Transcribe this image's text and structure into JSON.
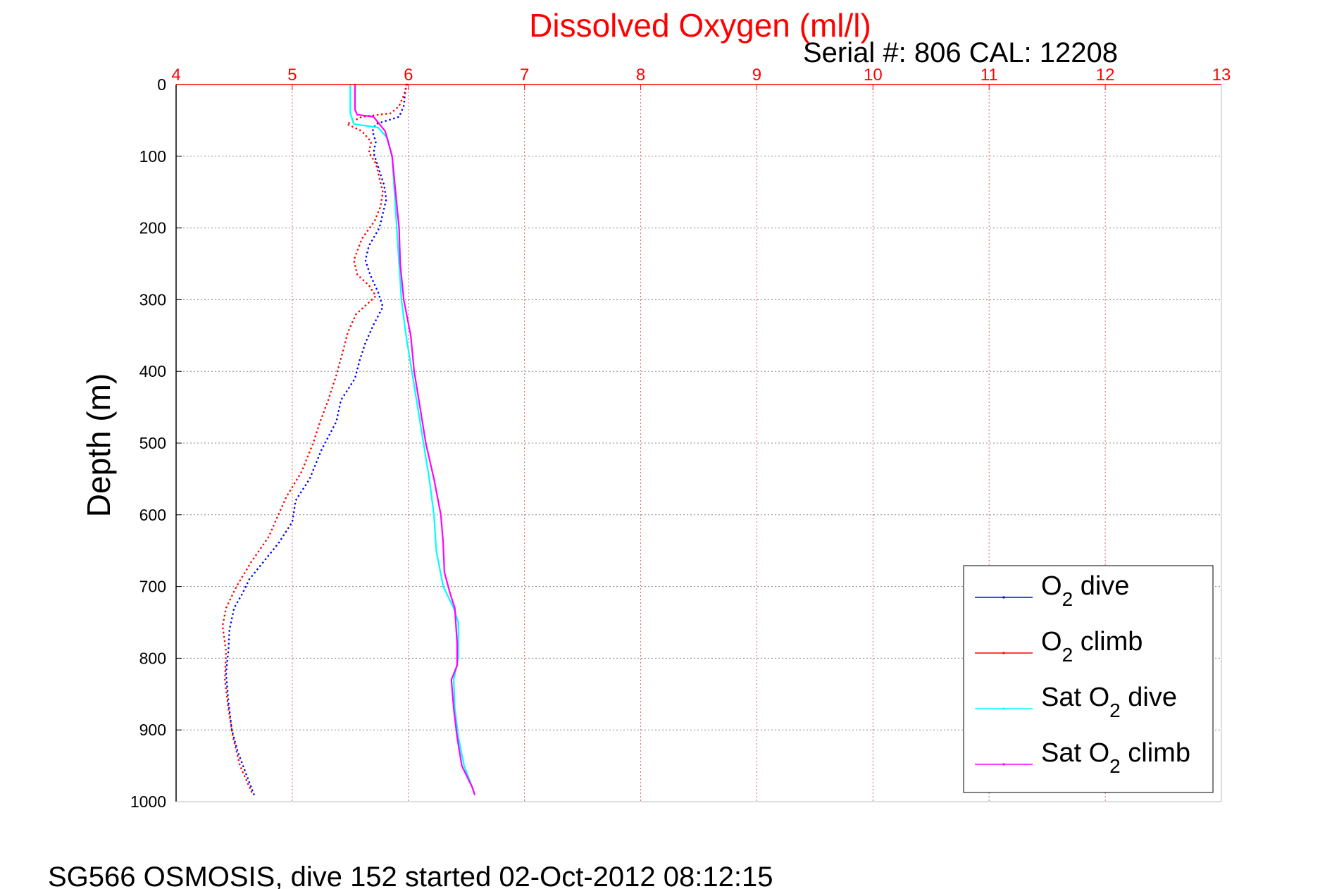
{
  "title": "Dissolved Oxygen (ml/l)",
  "subtitle": "Serial #: 806  CAL: 12208",
  "footer": "SG566 OSMOSIS, dive 152 started 02-Oct-2012 08:12:15",
  "colors": {
    "title": "#ff0000",
    "top_axis": "#ff0000",
    "axes": "#000000",
    "o2_dive": "#0000ff",
    "o2_climb": "#ff0000",
    "sat_dive": "#00ffff",
    "sat_climb": "#ff00ff"
  },
  "chart_data": {
    "type": "line",
    "title": "Dissolved Oxygen (ml/l)",
    "subtitle": "Serial #: 806  CAL: 12208",
    "xlabel": "",
    "ylabel": "Depth (m)",
    "x_axis_position": "top",
    "y_reversed": true,
    "xlim": [
      4,
      13
    ],
    "ylim": [
      0,
      1000
    ],
    "xticks": [
      "4",
      "5",
      "6",
      "7",
      "8",
      "9",
      "10",
      "11",
      "12",
      "13"
    ],
    "yticks": [
      "0",
      "100",
      "200",
      "300",
      "400",
      "500",
      "600",
      "700",
      "800",
      "900",
      "1000"
    ],
    "grid": true,
    "legend_position": "bottom-right",
    "series": [
      {
        "name": "O2 dive",
        "legend_label": {
          "prefix": "O",
          "sub": "2",
          "suffix": " dive"
        },
        "color": "#0000ff",
        "style": "dotted",
        "points": [
          [
            5.98,
            0
          ],
          [
            5.97,
            15
          ],
          [
            5.96,
            30
          ],
          [
            5.92,
            45
          ],
          [
            5.72,
            55
          ],
          [
            5.69,
            65
          ],
          [
            5.72,
            80
          ],
          [
            5.7,
            95
          ],
          [
            5.73,
            110
          ],
          [
            5.76,
            125
          ],
          [
            5.79,
            140
          ],
          [
            5.81,
            160
          ],
          [
            5.78,
            180
          ],
          [
            5.75,
            200
          ],
          [
            5.66,
            225
          ],
          [
            5.63,
            245
          ],
          [
            5.67,
            265
          ],
          [
            5.74,
            290
          ],
          [
            5.78,
            310
          ],
          [
            5.7,
            335
          ],
          [
            5.63,
            360
          ],
          [
            5.58,
            385
          ],
          [
            5.54,
            410
          ],
          [
            5.42,
            440
          ],
          [
            5.38,
            470
          ],
          [
            5.25,
            510
          ],
          [
            5.15,
            550
          ],
          [
            5.03,
            580
          ],
          [
            5.0,
            610
          ],
          [
            4.88,
            640
          ],
          [
            4.73,
            670
          ],
          [
            4.63,
            690
          ],
          [
            4.57,
            710
          ],
          [
            4.5,
            730
          ],
          [
            4.46,
            760
          ],
          [
            4.45,
            790
          ],
          [
            4.43,
            820
          ],
          [
            4.45,
            860
          ],
          [
            4.48,
            900
          ],
          [
            4.53,
            930
          ],
          [
            4.6,
            960
          ],
          [
            4.67,
            990
          ]
        ]
      },
      {
        "name": "O2 climb",
        "legend_label": {
          "prefix": "O",
          "sub": "2",
          "suffix": " climb"
        },
        "color": "#ff0000",
        "style": "dotted",
        "points": [
          [
            5.99,
            0
          ],
          [
            5.96,
            15
          ],
          [
            5.92,
            30
          ],
          [
            5.85,
            40
          ],
          [
            5.6,
            45
          ],
          [
            5.47,
            55
          ],
          [
            5.6,
            65
          ],
          [
            5.68,
            80
          ],
          [
            5.66,
            95
          ],
          [
            5.72,
            110
          ],
          [
            5.75,
            130
          ],
          [
            5.78,
            150
          ],
          [
            5.76,
            170
          ],
          [
            5.71,
            190
          ],
          [
            5.6,
            215
          ],
          [
            5.53,
            245
          ],
          [
            5.56,
            265
          ],
          [
            5.66,
            280
          ],
          [
            5.72,
            295
          ],
          [
            5.55,
            320
          ],
          [
            5.48,
            345
          ],
          [
            5.44,
            370
          ],
          [
            5.38,
            405
          ],
          [
            5.31,
            440
          ],
          [
            5.24,
            470
          ],
          [
            5.18,
            500
          ],
          [
            5.08,
            540
          ],
          [
            4.95,
            575
          ],
          [
            4.88,
            600
          ],
          [
            4.8,
            630
          ],
          [
            4.65,
            665
          ],
          [
            4.52,
            700
          ],
          [
            4.43,
            730
          ],
          [
            4.4,
            755
          ],
          [
            4.43,
            790
          ],
          [
            4.42,
            830
          ],
          [
            4.45,
            870
          ],
          [
            4.49,
            910
          ],
          [
            4.55,
            950
          ],
          [
            4.66,
            990
          ]
        ]
      },
      {
        "name": "Sat O2 dive",
        "legend_label": {
          "prefix": "Sat O",
          "sub": "2",
          "suffix": " dive"
        },
        "color": "#00ffff",
        "style": "solid",
        "points": [
          [
            5.5,
            0
          ],
          [
            5.5,
            40
          ],
          [
            5.53,
            55
          ],
          [
            5.74,
            60
          ],
          [
            5.82,
            75
          ],
          [
            5.86,
            100
          ],
          [
            5.88,
            150
          ],
          [
            5.9,
            200
          ],
          [
            5.92,
            250
          ],
          [
            5.94,
            300
          ],
          [
            5.98,
            350
          ],
          [
            6.03,
            400
          ],
          [
            6.08,
            450
          ],
          [
            6.13,
            500
          ],
          [
            6.18,
            550
          ],
          [
            6.22,
            600
          ],
          [
            6.24,
            650
          ],
          [
            6.3,
            700
          ],
          [
            6.39,
            730
          ],
          [
            6.43,
            750
          ],
          [
            6.43,
            800
          ],
          [
            6.39,
            830
          ],
          [
            6.4,
            870
          ],
          [
            6.43,
            910
          ],
          [
            6.48,
            950
          ],
          [
            6.55,
            980
          ],
          [
            6.57,
            990
          ]
        ]
      },
      {
        "name": "Sat O2 climb",
        "legend_label": {
          "prefix": "Sat O",
          "sub": "2",
          "suffix": " climb"
        },
        "color": "#ff00ff",
        "style": "solid",
        "points": [
          [
            5.54,
            0
          ],
          [
            5.54,
            35
          ],
          [
            5.56,
            42
          ],
          [
            5.7,
            45
          ],
          [
            5.8,
            65
          ],
          [
            5.86,
            100
          ],
          [
            5.89,
            150
          ],
          [
            5.92,
            200
          ],
          [
            5.93,
            250
          ],
          [
            5.96,
            300
          ],
          [
            6.02,
            350
          ],
          [
            6.05,
            400
          ],
          [
            6.1,
            450
          ],
          [
            6.15,
            500
          ],
          [
            6.22,
            550
          ],
          [
            6.28,
            600
          ],
          [
            6.3,
            640
          ],
          [
            6.31,
            680
          ],
          [
            6.36,
            710
          ],
          [
            6.4,
            730
          ],
          [
            6.42,
            780
          ],
          [
            6.42,
            810
          ],
          [
            6.37,
            830
          ],
          [
            6.39,
            870
          ],
          [
            6.42,
            910
          ],
          [
            6.46,
            950
          ],
          [
            6.55,
            980
          ],
          [
            6.57,
            990
          ]
        ]
      }
    ]
  }
}
